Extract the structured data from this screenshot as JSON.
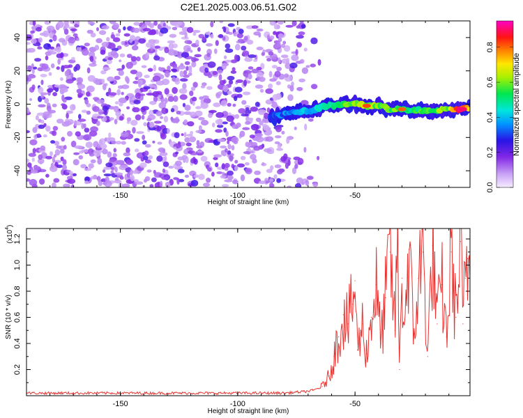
{
  "title": "C2E1.2025.003.06.51.G02",
  "chart_data": [
    {
      "type": "heatmap",
      "xlabel": "Height of straight line (km)",
      "ylabel": "Frequency (Hz)",
      "xlim": [
        -190,
        -1
      ],
      "ylim": [
        -50,
        50
      ],
      "x_ticks": [
        -150,
        -100,
        -50
      ],
      "y_ticks": [
        -40,
        -20,
        0,
        20,
        40
      ],
      "colorbar": {
        "label": "Normalized spectral amplitude",
        "range": [
          0,
          0.95
        ],
        "ticks": [
          0.0,
          0.2,
          0.4,
          0.6,
          0.8
        ]
      },
      "signal_trace": {
        "description_free": true,
        "x": [
          -86,
          -80,
          -75,
          -70,
          -65,
          -60,
          -55,
          -50,
          -45,
          -40,
          -35,
          -30,
          -25,
          -20,
          -15,
          -10,
          -5,
          -1
        ],
        "y": [
          -8,
          -6,
          -5,
          -4,
          -2,
          -1,
          0,
          0,
          -1,
          -1,
          -3,
          -3,
          -4,
          -4,
          -4,
          -3,
          -3,
          -2
        ],
        "amplitude": [
          0.3,
          0.35,
          0.38,
          0.4,
          0.45,
          0.5,
          0.55,
          0.6,
          0.62,
          0.6,
          0.58,
          0.55,
          0.52,
          0.55,
          0.58,
          0.62,
          0.9,
          0.7
        ]
      },
      "background_noise": {
        "x_range": [
          -190,
          -70
        ],
        "amplitude": 0.12
      }
    },
    {
      "type": "line",
      "xlabel": "Height of straight line (km)",
      "ylabel": "SNR (10 * v/v)",
      "yscale_label": "(x10",
      "yscale_exponent": "4",
      "xlim": [
        -190,
        -1
      ],
      "ylim": [
        0,
        1.28
      ],
      "x_ticks": [
        -150,
        -100,
        -50
      ],
      "y_ticks": [
        0.2,
        0.4,
        0.6,
        0.8,
        1.0,
        1.2
      ],
      "series": [
        {
          "color": "#e8312e",
          "x": [
            -190,
            -150,
            -100,
            -80,
            -72,
            -68,
            -64,
            -61,
            -59,
            -57,
            -55,
            -53,
            -51,
            -50,
            -49,
            -47,
            -45,
            -43,
            -41,
            -39,
            -37,
            -35,
            -33,
            -32,
            -31,
            -30,
            -29,
            -27,
            -25,
            -23,
            -21,
            -19,
            -17,
            -15,
            -13,
            -11,
            -9,
            -7,
            -5,
            -4,
            -3,
            -2,
            -1
          ],
          "y": [
            0.02,
            0.02,
            0.02,
            0.02,
            0.03,
            0.04,
            0.07,
            0.15,
            0.3,
            0.45,
            0.62,
            0.55,
            0.7,
            0.88,
            0.35,
            0.55,
            0.32,
            0.6,
            0.85,
            0.4,
            0.75,
            1.1,
            0.5,
            1.27,
            0.2,
            0.9,
            0.55,
            1.12,
            0.4,
            0.9,
            1.1,
            0.3,
            1.15,
            0.55,
            0.85,
            0.45,
            1.1,
            0.6,
            1.18,
            0.55,
            0.9,
            1.05,
            0.95
          ]
        }
      ]
    }
  ]
}
